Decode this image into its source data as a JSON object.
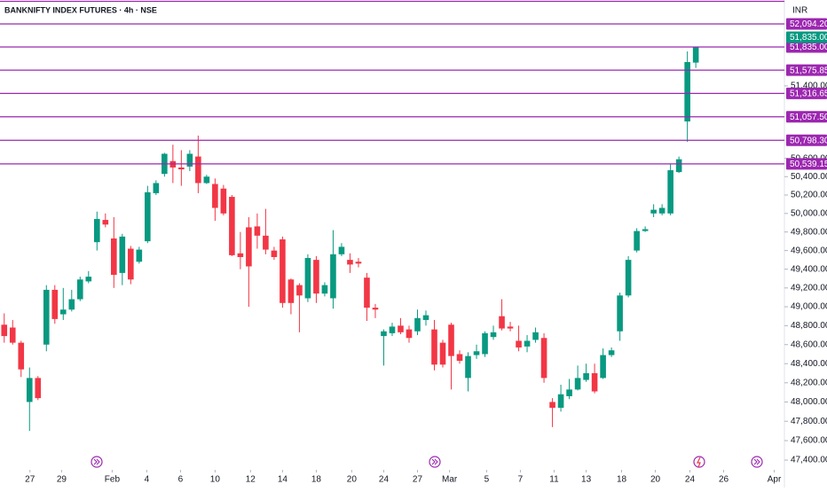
{
  "chart_data": {
    "type": "candlestick",
    "title": "BANKNIFTY INDEX FUTURES · 4h · NSE",
    "currency": "INR",
    "log_scale": true,
    "up_color": "#089981",
    "down_color": "#f23645",
    "open": [
      48810,
      48780,
      48620,
      48000,
      48250,
      48600,
      49180,
      48920,
      48970,
      49080,
      49270,
      49690,
      49930,
      49730,
      49360,
      49620,
      49480,
      49700,
      50220,
      50430,
      50570,
      50500,
      50510,
      50620,
      50330,
      50320,
      50270,
      50180,
      49570,
      49850,
      49860,
      49760,
      49600,
      49720,
      49290,
      49230,
      49090,
      49500,
      49140,
      49090,
      49560,
      49500,
      49480,
      49310,
      48990,
      48690,
      48720,
      48800,
      48760,
      48740,
      48860,
      48760,
      48620,
      48810,
      48500,
      48250,
      48490,
      48500,
      48680,
      48900,
      48790,
      48640,
      48580,
      48650,
      48670,
      48000,
      47940,
      48060,
      48130,
      48230,
      48300,
      48250,
      48490,
      48740,
      49120,
      49600,
      49810,
      50000,
      50000,
      50000,
      50450,
      51006,
      51660
    ],
    "high": [
      48930,
      48860,
      48640,
      48360,
      48270,
      49230,
      49230,
      49200,
      49180,
      49320,
      49380,
      50020,
      50000,
      49960,
      49780,
      49650,
      49640,
      50300,
      50360,
      50660,
      50750,
      50690,
      50690,
      50850,
      50420,
      50380,
      50310,
      50200,
      49800,
      49960,
      50000,
      50050,
      49640,
      49750,
      49300,
      49250,
      49560,
      49540,
      49260,
      49820,
      49680,
      49570,
      49520,
      49360,
      49030,
      48760,
      48830,
      48880,
      48800,
      48970,
      48960,
      48860,
      48650,
      48830,
      48540,
      48520,
      48600,
      48740,
      48800,
      49080,
      48840,
      48800,
      48700,
      48780,
      48720,
      48040,
      48180,
      48240,
      48380,
      48400,
      48400,
      48560,
      48570,
      49150,
      49540,
      49840,
      49860,
      50100,
      50100,
      50540,
      50620,
      51785,
      51835
    ],
    "low": [
      48620,
      48600,
      48260,
      47700,
      48020,
      48530,
      48820,
      48860,
      48950,
      49060,
      49250,
      49600,
      49850,
      49200,
      49230,
      49240,
      49460,
      49680,
      50200,
      50400,
      50330,
      50300,
      50460,
      50220,
      50320,
      49920,
      49980,
      49540,
      49400,
      49000,
      49620,
      49560,
      49500,
      48990,
      48920,
      48730,
      49050,
      49040,
      49110,
      48980,
      49540,
      49360,
      49420,
      48850,
      48880,
      48380,
      48690,
      48710,
      48620,
      48700,
      48800,
      48330,
      48360,
      48130,
      48400,
      48110,
      48450,
      48470,
      48650,
      48750,
      48740,
      48530,
      48520,
      48620,
      48200,
      47740,
      47900,
      48030,
      48120,
      48210,
      48090,
      48240,
      48470,
      48640,
      49100,
      49580,
      49800,
      49960,
      49980,
      49980,
      50440,
      50780,
      51600
    ],
    "close": [
      48690,
      48620,
      48340,
      48250,
      48040,
      49180,
      48870,
      48970,
      49080,
      49290,
      49320,
      49940,
      49880,
      49340,
      49750,
      49290,
      49610,
      50230,
      50330,
      50650,
      50500,
      50480,
      50650,
      50330,
      50400,
      50060,
      50000,
      49550,
      49530,
      49430,
      49760,
      49610,
      49530,
      49040,
      49040,
      49120,
      49520,
      49140,
      49230,
      49560,
      49640,
      49450,
      49460,
      48990,
      48970,
      48740,
      48790,
      48730,
      48670,
      48880,
      48910,
      48390,
      48390,
      48480,
      48430,
      48480,
      48530,
      48720,
      48730,
      48770,
      48770,
      48570,
      48640,
      48730,
      48250,
      47940,
      48080,
      48130,
      48250,
      48300,
      48110,
      48490,
      48540,
      49120,
      49500,
      49810,
      49830,
      50040,
      50060,
      50470,
      50590,
      51666,
      51835
    ],
    "ylim": [
      47300,
      52365
    ],
    "yticks": [
      {
        "value": 47400,
        "label": "47,400.00"
      },
      {
        "value": 47600,
        "label": "47,600.00"
      },
      {
        "value": 47800,
        "label": "47,800.00"
      },
      {
        "value": 48000,
        "label": "48,000.00"
      },
      {
        "value": 48200,
        "label": "48,200.00"
      },
      {
        "value": 48400,
        "label": "48,400.00"
      },
      {
        "value": 48600,
        "label": "48,600.00"
      },
      {
        "value": 48800,
        "label": "48,800.00"
      },
      {
        "value": 49000,
        "label": "49,000.00"
      },
      {
        "value": 49200,
        "label": "49,200.00"
      },
      {
        "value": 49400,
        "label": "49,400.00"
      },
      {
        "value": 49600,
        "label": "49,600.00"
      },
      {
        "value": 49800,
        "label": "49,800.00"
      },
      {
        "value": 50000,
        "label": "50,000.00"
      },
      {
        "value": 50200,
        "label": "50,200.00"
      },
      {
        "value": 50400,
        "label": "50,400.00"
      },
      {
        "value": 50600,
        "label": "50,600.00"
      },
      {
        "value": 51400,
        "label": "51,400.00"
      }
    ],
    "xlim": [
      -0.5,
      92.4
    ],
    "xticks": [
      {
        "value": 3.05,
        "label": "27"
      },
      {
        "value": 6.8,
        "label": "29"
      },
      {
        "value": 12.8,
        "label": "Feb"
      },
      {
        "value": 16.9,
        "label": "4"
      },
      {
        "value": 20.9,
        "label": "6"
      },
      {
        "value": 25,
        "label": "10"
      },
      {
        "value": 29.2,
        "label": "12"
      },
      {
        "value": 33,
        "label": "14"
      },
      {
        "value": 37,
        "label": "18"
      },
      {
        "value": 41.2,
        "label": "20"
      },
      {
        "value": 45,
        "label": "24"
      },
      {
        "value": 49,
        "label": "27"
      },
      {
        "value": 52.8,
        "label": "Mar"
      },
      {
        "value": 57.2,
        "label": "5"
      },
      {
        "value": 61.2,
        "label": "7"
      },
      {
        "value": 65.2,
        "label": "11"
      },
      {
        "value": 69,
        "label": "13"
      },
      {
        "value": 73.2,
        "label": "18"
      },
      {
        "value": 77.2,
        "label": "20"
      },
      {
        "value": 81.3,
        "label": "24"
      },
      {
        "value": 85.3,
        "label": "26"
      },
      {
        "value": 91.3,
        "label": "Apr"
      }
    ],
    "levels": {
      "color": "#9c27b0",
      "values": [
        52350,
        52094.2,
        51835,
        51575.85,
        51316.65,
        51057.5,
        50798.3,
        50539.15
      ],
      "value_labels": [
        null,
        "52,094.20",
        "51,835.00",
        "51,575.85",
        "51,316.65",
        "51,057.50",
        "50,798.30",
        "50,539.15"
      ]
    },
    "last_price": {
      "value": 51835,
      "label": "51,835.00",
      "color": "#089981"
    }
  }
}
